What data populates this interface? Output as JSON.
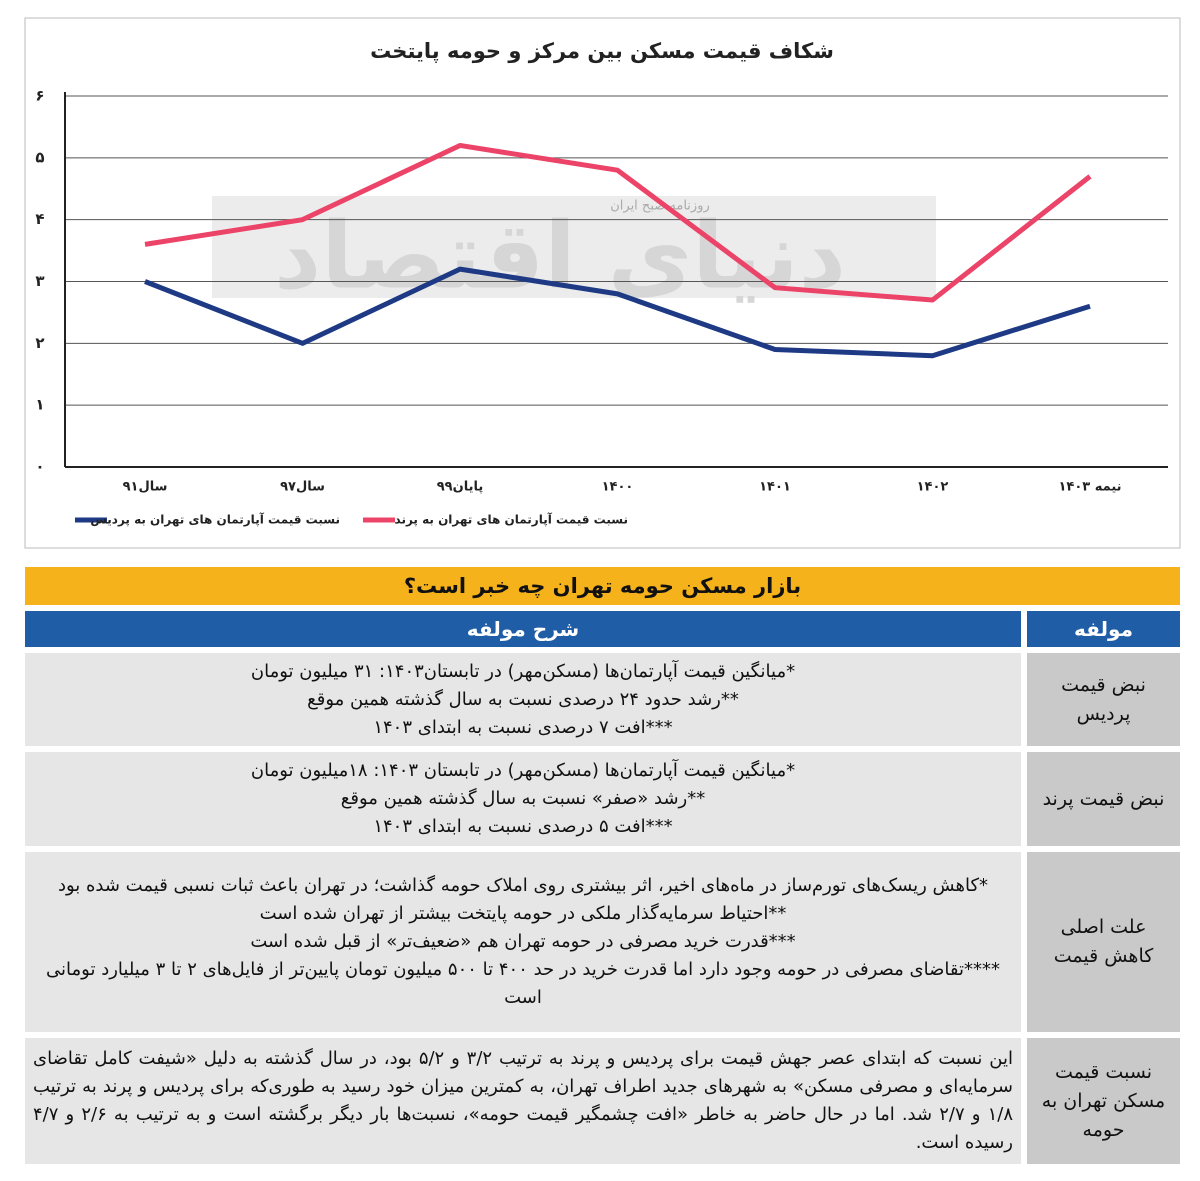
{
  "chart_data": {
    "type": "line",
    "title": "شکاف قیمت مسکن بین مرکز و حومه پایتخت",
    "categories": [
      "سال۹۱",
      "سال۹۷",
      "پایان۹۹",
      "۱۴۰۰",
      "۱۴۰۱",
      "۱۴۰۲",
      "نیمه ۱۴۰۳"
    ],
    "series": [
      {
        "name": "نسبت قیمت آپارتمان های تهران به پردیس",
        "color": "#1e3a85",
        "values": [
          3,
          2,
          3.2,
          2.8,
          1.9,
          1.8,
          2.6
        ]
      },
      {
        "name": "نسبت قیمت آپارتمان های تهران به پرند",
        "color": "#ec4468",
        "values": [
          3.6,
          4,
          5.2,
          4.8,
          2.9,
          2.7,
          4.7
        ]
      }
    ],
    "ylim": [
      0,
      6
    ],
    "yticks": [
      {
        "value": 0,
        "label": "۰"
      },
      {
        "value": 1,
        "label": "۱"
      },
      {
        "value": 2,
        "label": "۲"
      },
      {
        "value": 3,
        "label": "۳"
      },
      {
        "value": 4,
        "label": "۴"
      },
      {
        "value": 5,
        "label": "۵"
      },
      {
        "value": 6,
        "label": "۶"
      }
    ],
    "grid": true,
    "legend": "bottom"
  },
  "watermark": {
    "brand": "دنیای اقتصاد",
    "tagline": "روزنامه صبح ایران"
  },
  "table": {
    "title": "بازار مسکن حومه تهران چه خبر است؟",
    "header": [
      "مولفه",
      "شرح مولفه"
    ],
    "rows": [
      [
        "نبض قیمت پردیس",
        [
          "*میانگین قیمت آپارتمان‌ها (مسکن‌مهر) در تابستان۱۴۰۳: ۳۱ میلیون تومان",
          "**رشد حدود ۲۴ درصدی نسبت به سال گذشته همین موقع",
          "***افت ۷ درصدی نسبت به ابتدای ۱۴۰۳"
        ]
      ],
      [
        "نبض قیمت پرند",
        [
          "*میانگین قیمت آپارتمان‌ها (مسکن‌مهر) در تابستان ۱۴۰۳: ۱۸میلیون تومان",
          "**رشد «صفر» نسبت به سال گذشته همین موقع",
          "***افت ۵ درصدی نسبت به ابتدای ۱۴۰۳"
        ]
      ],
      [
        "علت اصلی کاهش قیمت",
        [
          "*کاهش ریسک‌های تورم‌ساز در ماه‌های اخیر، اثر بیشتری روی املاک حومه گذاشت؛ در تهران باعث ثبات نسبی قیمت شده بود",
          "**احتیاط سرمایه‌گذار ملکی در حومه پایتخت بیشتر از تهران شده است",
          "***قدرت خرید مصرفی در حومه تهران هم «ضعیف‌تر» از قبل شده است",
          "****تقاضای مصرفی در حومه وجود دارد اما قدرت خرید در حد ۴۰۰ تا ۵۰۰ میلیون تومان پایین‌تر از فایل‌های ۲ تا ۳ میلیارد تومانی است"
        ]
      ],
      [
        "نسبت قیمت مسکن تهران به حومه",
        [
          "این نسبت که ابتدای عصر جهش قیمت برای پردیس و پرند به ترتیب ۳/۲ و ۵/۲ بود، در سال گذشته به دلیل «شیفت کامل تقاضای سرمایه‌ای و مصرفی مسکن» به شهرهای جدید اطراف تهران، به کمترین میزان خود رسید به طوری‌که برای پردیس و پرند به ترتیب ۱/۸ و ۲/۷ شد. اما در حال حاضر به خاطر «افت چشمگیر قیمت حومه»، نسبت‌ها بار دیگر برگشته است و به ترتیب به ۲/۶ و ۴/۷ رسیده است."
        ]
      ]
    ]
  }
}
